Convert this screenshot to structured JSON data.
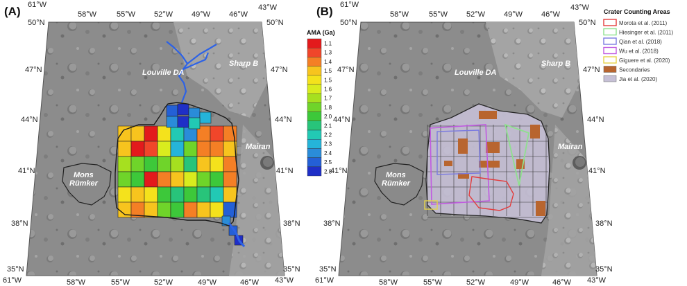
{
  "panels": [
    {
      "label": "(A)",
      "features": [
        "Louville DA",
        "Sharp B",
        "Mairan"
      ],
      "mons_rumker": [
        "Mons",
        "Rümker"
      ],
      "lon_top": [
        "61°W",
        "58°W",
        "55°W",
        "52°W",
        "49°W",
        "46°W",
        "43°W"
      ],
      "lon_bottom": [
        "61°W",
        "58°W",
        "55°W",
        "52°W",
        "49°W",
        "46°W",
        "43°W"
      ],
      "lat_left": [
        "50°N",
        "47°N",
        "44°N",
        "41°N",
        "38°N",
        "35°N"
      ],
      "lat_right": [
        "50°N",
        "47°N",
        "44°N",
        "41°N",
        "38°N",
        "35°N"
      ]
    },
    {
      "label": "(B)",
      "features": [
        "Louville DA",
        "Sharp B",
        "Mairan"
      ],
      "mons_rumker": [
        "Mons",
        "Rümker"
      ],
      "lon_top": [
        "61°W",
        "58°W",
        "55°W",
        "52°W",
        "49°W",
        "46°W",
        "43°W"
      ],
      "lon_bottom": [
        "61°W",
        "58°W",
        "55°W",
        "52°W",
        "49°W",
        "46°W",
        "43°W"
      ],
      "lat_left": [
        "50°N",
        "47°N",
        "44°N",
        "41°N",
        "38°N",
        "35°N"
      ],
      "lat_right": [
        "50°N",
        "47°N",
        "44°N",
        "41°N",
        "38°N",
        "35°N"
      ]
    }
  ],
  "colorbar": {
    "title": "AMA (Ga)",
    "ticks": [
      "1.1",
      "1.3",
      "1.4",
      "1.5",
      "1.5",
      "1.6",
      "1.7",
      "1.8",
      "2.0",
      "2.1",
      "2.2",
      "2.3",
      "2.4",
      "2.5",
      "2.8"
    ],
    "colors": [
      "#e31a1c",
      "#f0462a",
      "#f47f25",
      "#f7c41e",
      "#f4e21c",
      "#d9ec1e",
      "#a6e01f",
      "#6fd42a",
      "#3dc83a",
      "#28c47a",
      "#22c9b4",
      "#25b4d9",
      "#2a8cd9",
      "#2460d6",
      "#1f2fc7"
    ]
  },
  "legend": {
    "title": "Crater Counting Areas",
    "items": [
      {
        "label": "Morota et al. (2011)",
        "color": "#e33c3c",
        "style": "outline"
      },
      {
        "label": "Hiesinger et al. (2011)",
        "color": "#8fe08f",
        "style": "outline"
      },
      {
        "label": "Qian et al. (2018)",
        "color": "#7a7ae0",
        "style": "outline"
      },
      {
        "label": "Wu et al. (2018)",
        "color": "#c05ae0",
        "style": "outline"
      },
      {
        "label": "Giguere et al. (2020)",
        "color": "#e6d34a",
        "style": "outline"
      },
      {
        "label": "Secondaries",
        "color": "#b8652f",
        "style": "fill"
      },
      {
        "label": "Jia et al. (2020)",
        "color": "#c6c0d6",
        "style": "fill"
      }
    ]
  }
}
